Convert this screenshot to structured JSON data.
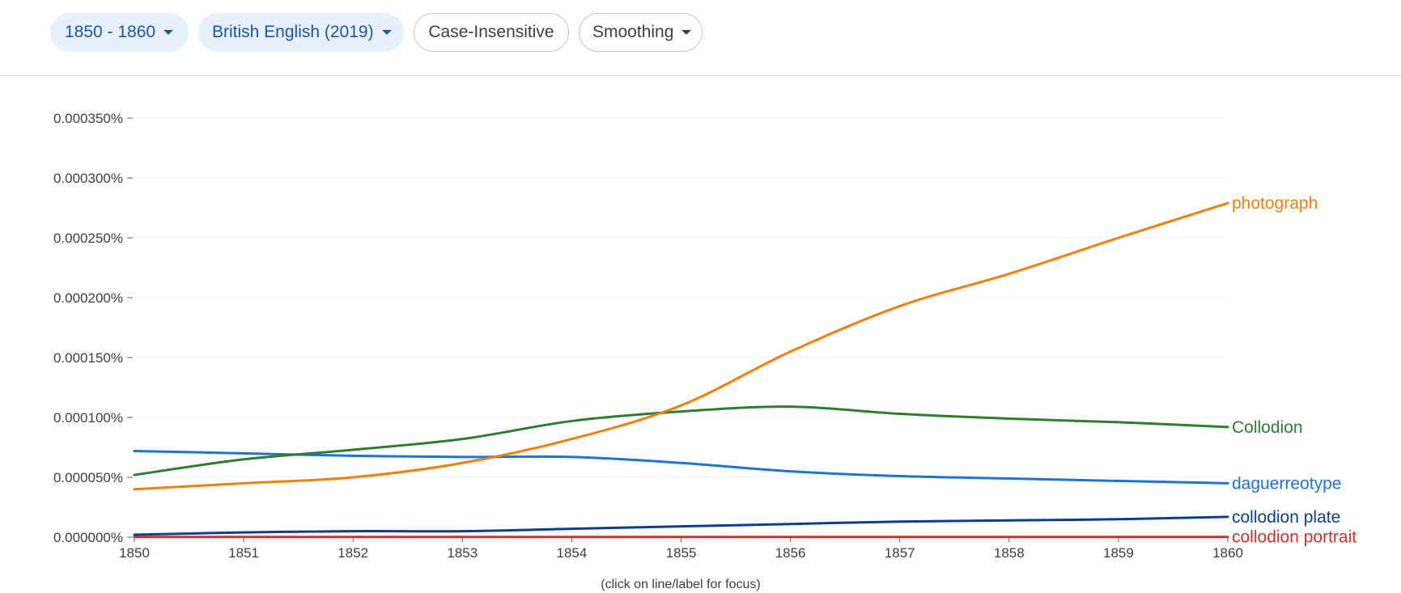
{
  "toolbar": {
    "year_range": "1850 - 1860",
    "corpus": "British English (2019)",
    "case_toggle": "Case-Insensitive",
    "smoothing": "Smoothing"
  },
  "icons": {
    "dropdown": "chevron-down-icon"
  },
  "hint": "(click on line/label for focus)",
  "chart_data": {
    "type": "line",
    "x": [
      1850,
      1851,
      1852,
      1853,
      1854,
      1855,
      1856,
      1857,
      1858,
      1859,
      1860
    ],
    "xlim": [
      1850,
      1860
    ],
    "ylim": [
      0,
      0.00035
    ],
    "y_ticks": [
      {
        "value": 0,
        "label": "0.000000%"
      },
      {
        "value": 5e-05,
        "label": "0.000050%"
      },
      {
        "value": 0.0001,
        "label": "0.000100%"
      },
      {
        "value": 0.00015,
        "label": "0.000150%"
      },
      {
        "value": 0.0002,
        "label": "0.000200%"
      },
      {
        "value": 0.00025,
        "label": "0.000250%"
      },
      {
        "value": 0.0003,
        "label": "0.000300%"
      },
      {
        "value": 0.00035,
        "label": "0.000350%"
      }
    ],
    "x_ticks": [
      "1850",
      "1851",
      "1852",
      "1853",
      "1854",
      "1855",
      "1856",
      "1857",
      "1858",
      "1859",
      "1860"
    ],
    "grid": true,
    "legend": "end-of-line labels",
    "series": [
      {
        "name": "photograph",
        "color": "#f07f0b",
        "values": [
          4e-05,
          4.5e-05,
          5e-05,
          6.2e-05,
          8.2e-05,
          0.00011,
          0.000155,
          0.000193,
          0.00022,
          0.00025,
          0.000279
        ]
      },
      {
        "name": "Collodion",
        "color": "#2e7d32",
        "values": [
          5.2e-05,
          6.5e-05,
          7.3e-05,
          8.2e-05,
          9.7e-05,
          0.000105,
          0.000109,
          0.000103,
          9.9e-05,
          9.6e-05,
          9.2e-05
        ]
      },
      {
        "name": "daguerreotype",
        "color": "#1e73d6",
        "values": [
          7.2e-05,
          7e-05,
          6.8e-05,
          6.7e-05,
          6.7e-05,
          6.2e-05,
          5.5e-05,
          5.1e-05,
          4.9e-05,
          4.7e-05,
          4.5e-05
        ]
      },
      {
        "name": "collodion plate",
        "color": "#0d3d91",
        "values": [
          2e-06,
          4e-06,
          5e-06,
          5e-06,
          7e-06,
          9e-06,
          1.1e-05,
          1.3e-05,
          1.4e-05,
          1.5e-05,
          1.7e-05
        ]
      },
      {
        "name": "collodion portrait",
        "color": "#d32f2f",
        "values": [
          2e-07,
          2e-07,
          2e-07,
          2e-07,
          2e-07,
          2e-07,
          2e-07,
          2e-07,
          2e-07,
          2e-07,
          2e-07
        ]
      }
    ]
  }
}
